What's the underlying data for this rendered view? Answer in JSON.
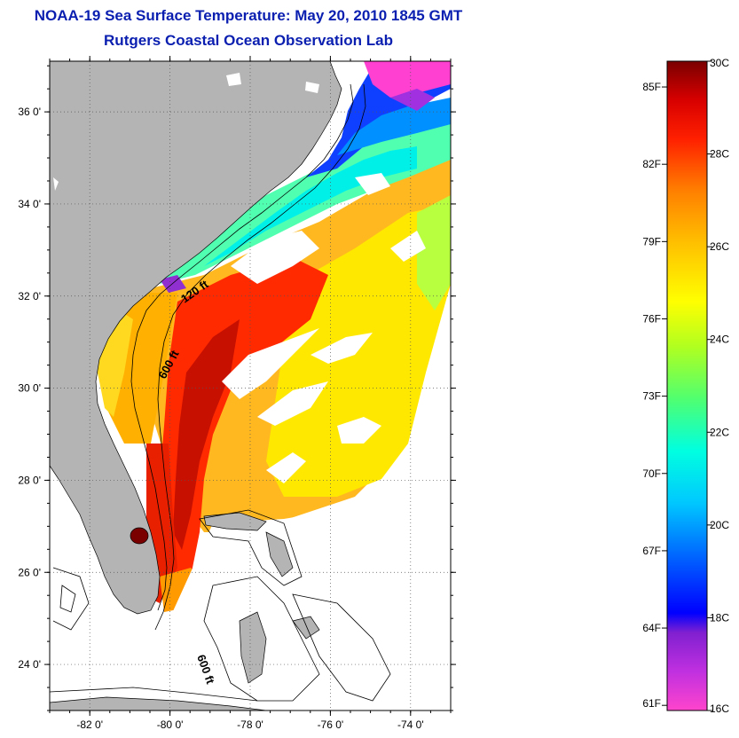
{
  "title": "NOAA-19 Sea Surface Temperature:  May 20, 2010 1845 GMT",
  "subtitle": "Rutgers Coastal Ocean Observation Lab",
  "map": {
    "lat_ticks": [
      {
        "value": 36,
        "label": "36 0'"
      },
      {
        "value": 34,
        "label": "34 0'"
      },
      {
        "value": 32,
        "label": "32 0'"
      },
      {
        "value": 30,
        "label": "30 0'"
      },
      {
        "value": 28,
        "label": "28 0'"
      },
      {
        "value": 26,
        "label": "26 0'"
      },
      {
        "value": 24,
        "label": "24 0'"
      }
    ],
    "lon_ticks": [
      {
        "value": -82,
        "label": "-82 0'"
      },
      {
        "value": -80,
        "label": "-80 0'"
      },
      {
        "value": -78,
        "label": "-78 0'"
      },
      {
        "value": -76,
        "label": "-76 0'"
      },
      {
        "value": -74,
        "label": "-74 0'"
      }
    ],
    "lat_range": [
      23.0,
      37.1
    ],
    "lon_range": [
      -83.0,
      -73.0
    ],
    "isobath_labels": {
      "shelf": "120 ft",
      "slope_north": "600 ft",
      "slope_south": "600 ft"
    },
    "land_color": "#b4b4b4",
    "cloud_color": "#ffffff"
  },
  "colorbar": {
    "celsius_range": [
      16,
      30
    ],
    "celsius_labels": [
      "30C",
      "28C",
      "26C",
      "24C",
      "22C",
      "20C",
      "18C",
      "16C"
    ],
    "fahrenheit_labels": [
      "85F",
      "82F",
      "79F",
      "76F",
      "73F",
      "70F",
      "67F",
      "64F",
      "61F"
    ],
    "stops": [
      "#ff44cc",
      "#8020d0",
      "#0000ff",
      "#0060ff",
      "#00ffff",
      "#40ff80",
      "#a0ff20",
      "#ffff00",
      "#ffc000",
      "#ff8000",
      "#ff2000",
      "#e00000",
      "#7a0000"
    ]
  }
}
